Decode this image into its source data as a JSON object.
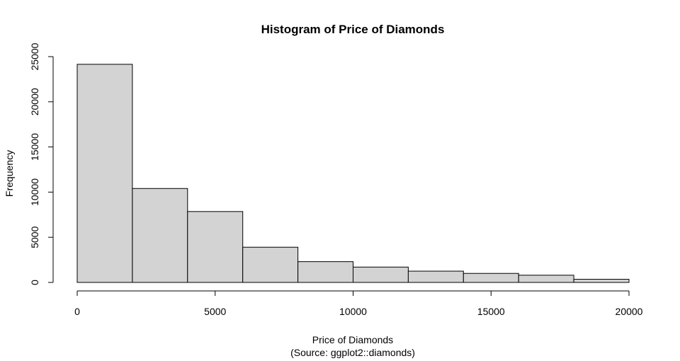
{
  "chart_data": {
    "type": "bar",
    "title": "Histogram of Price of Diamonds",
    "xlabel": "Price of Diamonds",
    "xlabel_sub": "(Source: ggplot2::diamonds)",
    "ylabel": "Frequency",
    "bin_edges": [
      0,
      2000,
      4000,
      6000,
      8000,
      10000,
      12000,
      14000,
      16000,
      18000,
      20000
    ],
    "values": [
      24150,
      10400,
      7850,
      3900,
      2300,
      1700,
      1250,
      1000,
      800,
      350
    ],
    "xlim": [
      0,
      20000
    ],
    "ylim": [
      0,
      25000
    ],
    "x_ticks": [
      0,
      5000,
      10000,
      15000,
      20000
    ],
    "y_ticks": [
      0,
      5000,
      10000,
      15000,
      20000,
      25000
    ],
    "grid": false,
    "legend": "none"
  }
}
